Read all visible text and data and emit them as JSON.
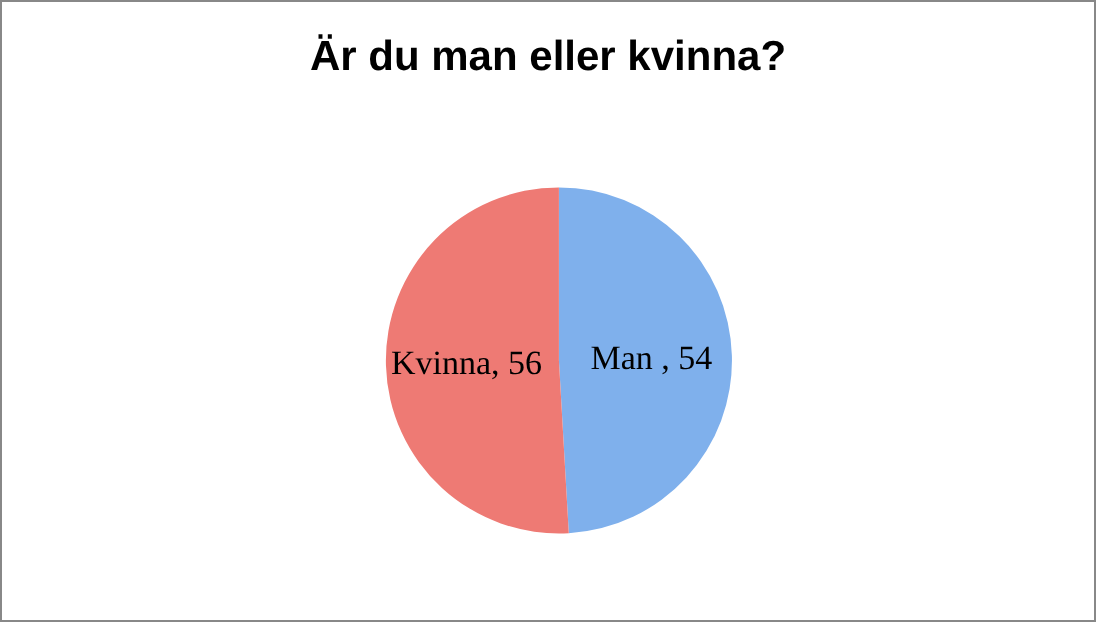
{
  "chart_data": {
    "type": "pie",
    "title": "Är du man eller kvinna?",
    "categories": [
      "Man ",
      "Kvinna"
    ],
    "values": [
      54,
      56
    ],
    "value_labels": [
      "54",
      "56"
    ],
    "colors": [
      "#7fb0ec",
      "#ee7a74"
    ],
    "legend": false
  }
}
